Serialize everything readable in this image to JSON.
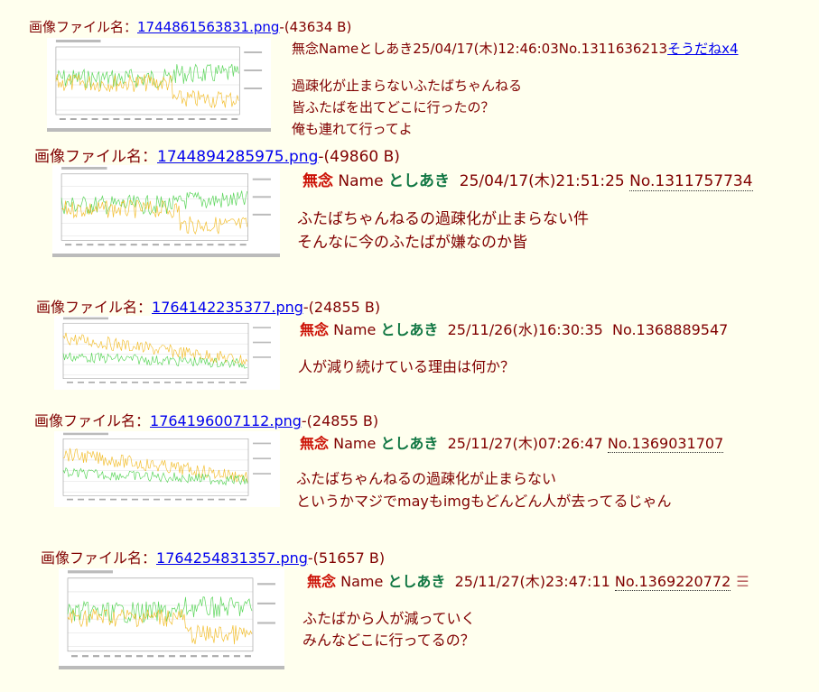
{
  "label_filename": "画像ファイル名：",
  "posts": [
    {
      "file": "1744861563831.png",
      "size": "-(43634 B)",
      "subject": "無念",
      "name_label": "Name",
      "name": "としあき",
      "date": "25/04/17(木)12:46:03",
      "no": "No.1311636213",
      "sodane": "そうだねx4",
      "lines": [
        "過疎化が止まらないふたばちゃんねる",
        "皆ふたばを出てどこに行ったの？",
        "俺も連れて行ってよ"
      ]
    },
    {
      "file": "1744894285975.png",
      "size": "-(49860 B)",
      "subject": "無念",
      "name_label": "Name",
      "name": "としあき",
      "date": "25/04/17(木)21:51:25",
      "no": "No.1311757734",
      "lines": [
        "ふたばちゃんねるの過疎化が止まらない件",
        "そんなに今のふたばが嫌なのか皆"
      ]
    },
    {
      "file": "1764142235377.png",
      "size": "-(24855 B)",
      "subject": "無念",
      "name_label": "Name",
      "name": "としあき",
      "date": "25/11/26(水)16:30:35",
      "no": "No.1368889547",
      "lines": [
        "人が減り続けている理由は何か？"
      ]
    },
    {
      "file": "1764196007112.png",
      "size": "-(24855 B)",
      "subject": "無念",
      "name_label": "Name",
      "name": "としあき",
      "date": "25/11/27(木)07:26:47",
      "no": "No.1369031707",
      "lines": [
        "ふたばちゃんねるの過疎化が止まらない",
        "というかマジでmayもimgもどんどん人が去ってるじゃん"
      ]
    },
    {
      "file": "1764254831357.png",
      "size": "-(51657 B)",
      "subject": "無念",
      "name_label": "Name",
      "name": "としあき",
      "date": "25/11/27(木)23:47:11",
      "no": "No.1369220772",
      "menu_icon": "list-menu-icon",
      "lines": [
        "ふたばから人が減っていく",
        "みんなどこに行ってるの？"
      ]
    }
  ],
  "colors": {
    "background": "#ffffee",
    "text": "#800000",
    "subject": "#cc1105",
    "name": "#117743",
    "link": "#0000ee",
    "series_green": "#33cc33",
    "series_orange": "#f0b000"
  }
}
